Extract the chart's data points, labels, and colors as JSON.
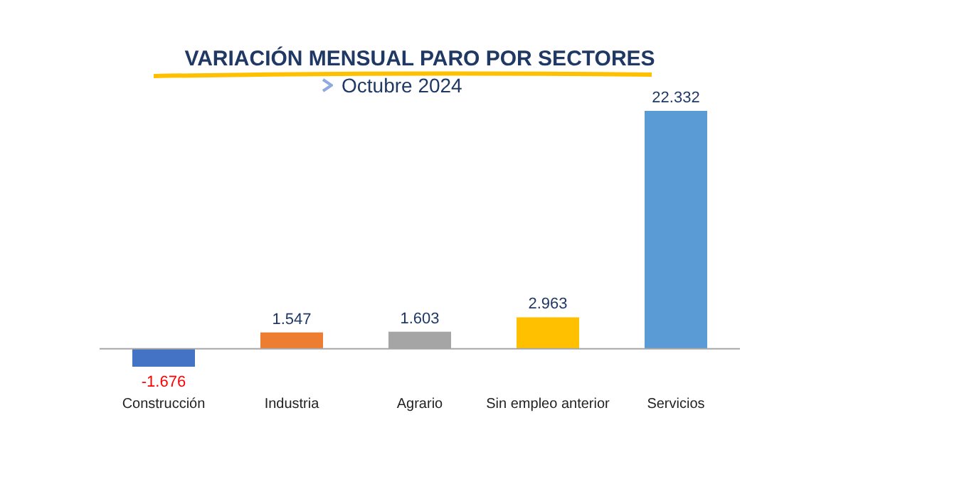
{
  "chart_data": {
    "type": "bar",
    "title": "VARIACIÓN MENSUAL PARO POR SECTORES",
    "subtitle": "Octubre 2024",
    "categories": [
      "Construcción",
      "Industria",
      "Agrario",
      "Sin empleo anterior",
      "Servicios"
    ],
    "values": [
      -1676,
      1547,
      1603,
      2963,
      22332
    ],
    "colors": [
      "#4472c4",
      "#ed7d31",
      "#a5a5a5",
      "#ffc000",
      "#5b9bd5"
    ],
    "value_labels": [
      "-1.676",
      "1.547",
      "1.603",
      "2.963",
      "22.332"
    ],
    "grid": false,
    "legend": false
  }
}
